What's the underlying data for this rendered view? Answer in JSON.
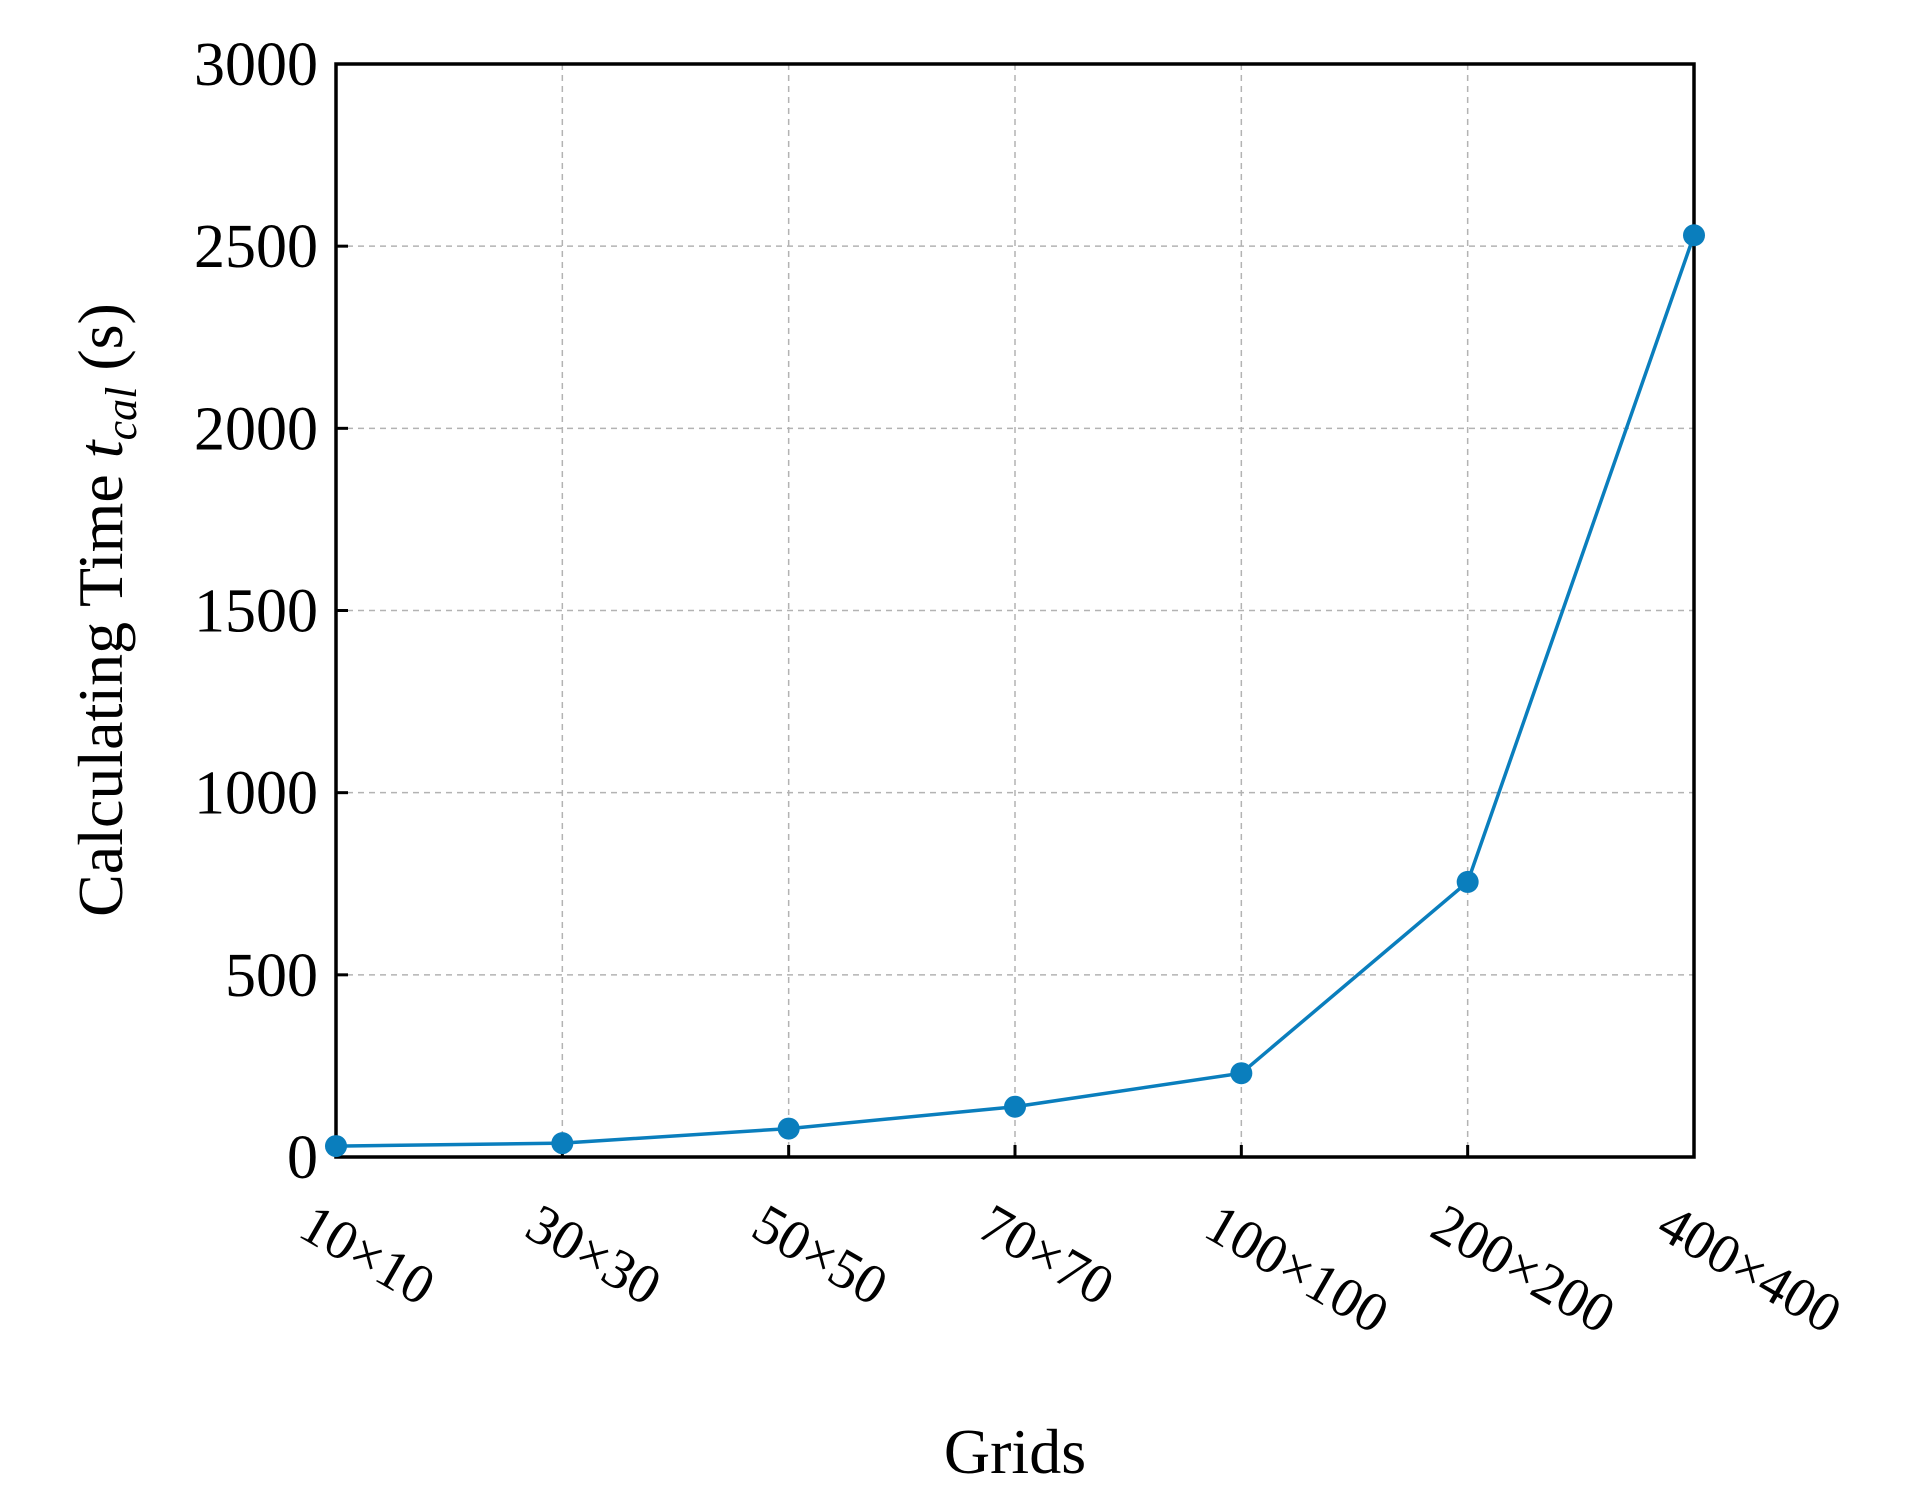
{
  "chart_data": {
    "type": "line",
    "categories": [
      "10×10",
      "30×30",
      "50×50",
      "70×70",
      "100×100",
      "200×200",
      "400×400"
    ],
    "series": [
      {
        "values": [
          30,
          38,
          78,
          138,
          230,
          755,
          2530
        ]
      }
    ],
    "xlabel": "Grids",
    "ylabel_main": "Calculating Time ",
    "ylabel_var": "t",
    "ylabel_sub": "cal",
    "ylabel_unit": " (s)",
    "ylim": [
      0,
      3000
    ],
    "yticks": [
      "0",
      "500",
      "1000",
      "1500",
      "2000",
      "2500",
      "3000"
    ],
    "grid": true,
    "colors": {
      "series": "#0a7ebd"
    }
  }
}
